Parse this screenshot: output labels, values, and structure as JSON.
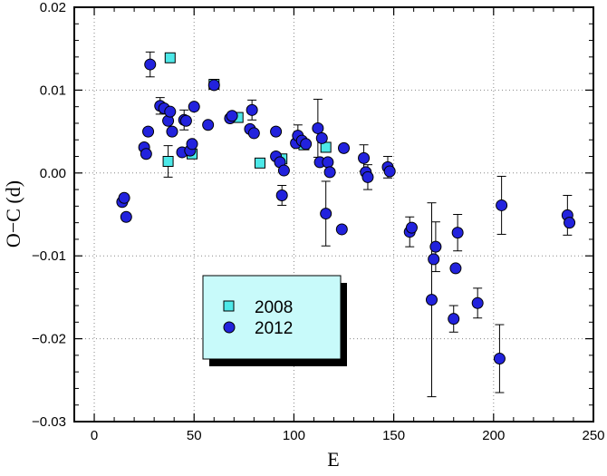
{
  "chart_data": {
    "type": "scatter",
    "xlabel": "E",
    "ylabel": "O−C (d)",
    "xlim": [
      -10,
      250
    ],
    "ylim": [
      -0.03,
      0.02
    ],
    "grid": true,
    "legend_position": "lower-center",
    "x_ticks": [
      0,
      50,
      100,
      150,
      200,
      250
    ],
    "x_tick_labels": [
      "0",
      "50",
      "100",
      "150",
      "200",
      "250"
    ],
    "y_ticks": [
      -0.03,
      -0.02,
      -0.01,
      0.0,
      0.01,
      0.02
    ],
    "y_tick_labels": [
      "−0.03",
      "−0.02",
      "−0.01",
      "0.00",
      "0.01",
      "0.02"
    ],
    "series": [
      {
        "name": "2008",
        "marker": "square",
        "color": "#4de8e8",
        "points": [
          {
            "x": 37,
            "y": 0.0014,
            "err": 0.0019
          },
          {
            "x": 38,
            "y": 0.0139,
            "err": 0.0
          },
          {
            "x": 49,
            "y": 0.0023,
            "err": 0.0
          },
          {
            "x": 60,
            "y": 0.0107,
            "err": 0.0
          },
          {
            "x": 72,
            "y": 0.0067,
            "err": 0.0
          },
          {
            "x": 83,
            "y": 0.0012,
            "err": 0.0
          },
          {
            "x": 94,
            "y": 0.0017,
            "err": 0.0
          },
          {
            "x": 105,
            "y": 0.0034,
            "err": 0.0
          },
          {
            "x": 116,
            "y": 0.0031,
            "err": 0.0
          }
        ]
      },
      {
        "name": "2012",
        "marker": "circle",
        "color": "#2222dd",
        "points": [
          {
            "x": 14,
            "y": -0.0035,
            "err": 0.0
          },
          {
            "x": 15,
            "y": -0.003,
            "err": 0.0
          },
          {
            "x": 16,
            "y": -0.0053,
            "err": 0.0
          },
          {
            "x": 25,
            "y": 0.0031,
            "err": 0.0
          },
          {
            "x": 26,
            "y": 0.0023,
            "err": 0.0
          },
          {
            "x": 27,
            "y": 0.005,
            "err": 0.0
          },
          {
            "x": 28,
            "y": 0.0131,
            "err": 0.0015
          },
          {
            "x": 33,
            "y": 0.0081,
            "err": 0.001
          },
          {
            "x": 35,
            "y": 0.0078,
            "err": 0.0
          },
          {
            "x": 37,
            "y": 0.0063,
            "err": 0.0
          },
          {
            "x": 38,
            "y": 0.0074,
            "err": 0.0
          },
          {
            "x": 39,
            "y": 0.005,
            "err": 0.0
          },
          {
            "x": 44,
            "y": 0.0025,
            "err": 0.0
          },
          {
            "x": 45,
            "y": 0.0064,
            "err": 0.0012
          },
          {
            "x": 46,
            "y": 0.0063,
            "err": 0.0
          },
          {
            "x": 48,
            "y": 0.0027,
            "err": 0.0
          },
          {
            "x": 49,
            "y": 0.0035,
            "err": 0.0
          },
          {
            "x": 50,
            "y": 0.008,
            "err": 0.0
          },
          {
            "x": 57,
            "y": 0.0058,
            "err": 0.0
          },
          {
            "x": 60,
            "y": 0.0106,
            "err": 0.0
          },
          {
            "x": 68,
            "y": 0.0066,
            "err": 0.0
          },
          {
            "x": 69,
            "y": 0.0069,
            "err": 0.0
          },
          {
            "x": 78,
            "y": 0.0053,
            "err": 0.0
          },
          {
            "x": 79,
            "y": 0.0076,
            "err": 0.0012
          },
          {
            "x": 80,
            "y": 0.0048,
            "err": 0.0
          },
          {
            "x": 91,
            "y": 0.005,
            "err": 0.0
          },
          {
            "x": 91,
            "y": 0.002,
            "err": 0.0
          },
          {
            "x": 93,
            "y": 0.0013,
            "err": 0.0
          },
          {
            "x": 94,
            "y": -0.0027,
            "err": 0.0012
          },
          {
            "x": 95,
            "y": 0.0003,
            "err": 0.0
          },
          {
            "x": 101,
            "y": 0.0036,
            "err": 0.0
          },
          {
            "x": 102,
            "y": 0.0045,
            "err": 0.0013
          },
          {
            "x": 104,
            "y": 0.0039,
            "err": 0.0
          },
          {
            "x": 106,
            "y": 0.0035,
            "err": 0.0
          },
          {
            "x": 112,
            "y": 0.0054,
            "err": 0.0035
          },
          {
            "x": 113,
            "y": 0.0013,
            "err": 0.0
          },
          {
            "x": 114,
            "y": 0.0042,
            "err": 0.0
          },
          {
            "x": 116,
            "y": -0.0049,
            "err": 0.0039
          },
          {
            "x": 117,
            "y": 0.0013,
            "err": 0.0
          },
          {
            "x": 118,
            "y": 0.0001,
            "err": 0.0
          },
          {
            "x": 124,
            "y": -0.0068,
            "err": 0.0
          },
          {
            "x": 125,
            "y": 0.003,
            "err": 0.0
          },
          {
            "x": 135,
            "y": 0.0018,
            "err": 0.0016
          },
          {
            "x": 136,
            "y": 0.0001,
            "err": 0.0
          },
          {
            "x": 137,
            "y": -0.0005,
            "err": 0.0015
          },
          {
            "x": 147,
            "y": 0.0007,
            "err": 0.0013
          },
          {
            "x": 148,
            "y": 0.0002,
            "err": 0.0
          },
          {
            "x": 158,
            "y": -0.0071,
            "err": 0.0018
          },
          {
            "x": 159,
            "y": -0.0066,
            "err": 0.0
          },
          {
            "x": 169,
            "y": -0.0153,
            "err": 0.0117
          },
          {
            "x": 170,
            "y": -0.0104,
            "err": 0.0
          },
          {
            "x": 171,
            "y": -0.0089,
            "err": 0.003
          },
          {
            "x": 180,
            "y": -0.0176,
            "err": 0.0016
          },
          {
            "x": 181,
            "y": -0.0115,
            "err": 0.0
          },
          {
            "x": 182,
            "y": -0.0072,
            "err": 0.0022
          },
          {
            "x": 192,
            "y": -0.0157,
            "err": 0.0018
          },
          {
            "x": 203,
            "y": -0.0224,
            "err": 0.0041
          },
          {
            "x": 204,
            "y": -0.0039,
            "err": 0.0035
          },
          {
            "x": 237,
            "y": -0.0051,
            "err": 0.0024
          },
          {
            "x": 238,
            "y": -0.006,
            "err": 0.0
          }
        ]
      }
    ]
  }
}
